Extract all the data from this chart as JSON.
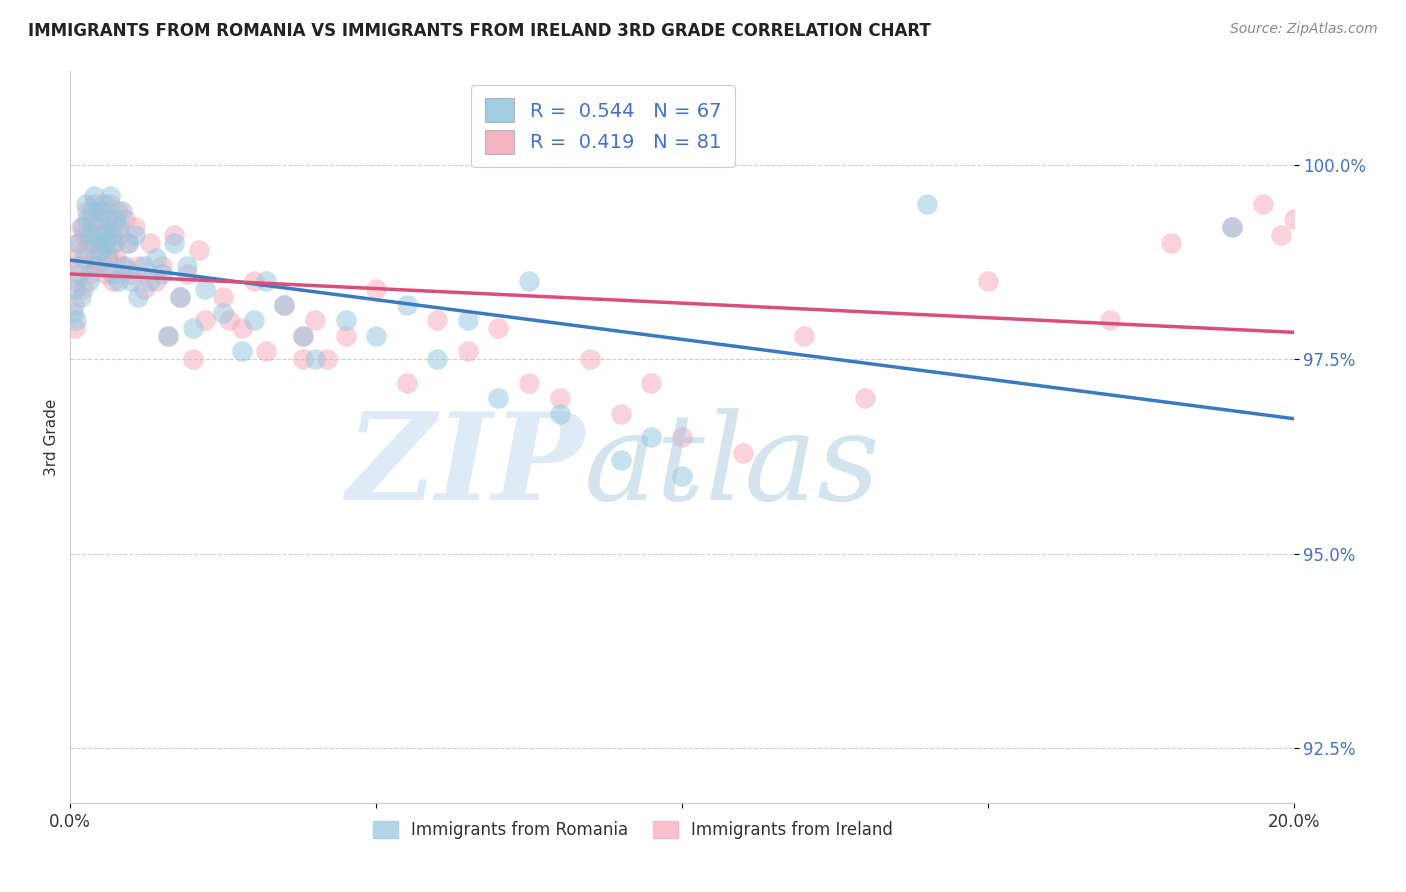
{
  "title": "IMMIGRANTS FROM ROMANIA VS IMMIGRANTS FROM IRELAND 3RD GRADE CORRELATION CHART",
  "source_text": "Source: ZipAtlas.com",
  "ylabel": "3rd Grade",
  "xlim": [
    0.0,
    20.0
  ],
  "ylim": [
    91.8,
    101.2
  ],
  "yticks": [
    92.5,
    95.0,
    97.5,
    100.0
  ],
  "xticks": [
    0.0,
    5.0,
    10.0,
    15.0,
    20.0
  ],
  "xtick_labels": [
    "0.0%",
    "",
    "",
    "",
    "20.0%"
  ],
  "ytick_labels": [
    "92.5%",
    "95.0%",
    "97.5%",
    "100.0%"
  ],
  "romania_color": "#92c5de",
  "ireland_color": "#f4a7b9",
  "romania_edge_color": "#5b9ec9",
  "ireland_edge_color": "#e06080",
  "romania_line_color": "#3a7bbf",
  "ireland_line_color": "#d94f7a",
  "romania_R": 0.544,
  "romania_N": 67,
  "ireland_R": 0.419,
  "ireland_N": 81,
  "romania_x": [
    0.05,
    0.08,
    0.1,
    0.12,
    0.15,
    0.18,
    0.2,
    0.22,
    0.25,
    0.28,
    0.3,
    0.32,
    0.35,
    0.38,
    0.4,
    0.42,
    0.45,
    0.48,
    0.5,
    0.52,
    0.55,
    0.58,
    0.6,
    0.62,
    0.65,
    0.68,
    0.7,
    0.72,
    0.75,
    0.78,
    0.8,
    0.85,
    0.9,
    0.95,
    1.0,
    1.05,
    1.1,
    1.2,
    1.3,
    1.4,
    1.5,
    1.6,
    1.7,
    1.8,
    1.9,
    2.0,
    2.2,
    2.5,
    2.8,
    3.0,
    3.2,
    3.5,
    3.8,
    4.0,
    4.5,
    5.0,
    5.5,
    6.0,
    6.5,
    7.0,
    7.5,
    8.0,
    9.0,
    9.5,
    10.0,
    14.0,
    19.0
  ],
  "romania_y": [
    98.1,
    98.4,
    98.0,
    99.0,
    98.6,
    98.3,
    99.2,
    98.8,
    99.5,
    99.3,
    98.5,
    99.1,
    99.4,
    99.6,
    99.0,
    98.7,
    99.2,
    98.9,
    99.4,
    99.1,
    99.5,
    99.0,
    98.8,
    99.3,
    99.6,
    99.1,
    98.6,
    99.0,
    99.3,
    98.5,
    99.2,
    99.4,
    98.7,
    99.0,
    98.5,
    99.1,
    98.3,
    98.7,
    98.5,
    98.8,
    98.6,
    97.8,
    99.0,
    98.3,
    98.7,
    97.9,
    98.4,
    98.1,
    97.6,
    98.0,
    98.5,
    98.2,
    97.8,
    97.5,
    98.0,
    97.8,
    98.2,
    97.5,
    98.0,
    97.0,
    98.5,
    96.8,
    96.2,
    96.5,
    96.0,
    99.5,
    99.2
  ],
  "ireland_x": [
    0.03,
    0.06,
    0.08,
    0.1,
    0.12,
    0.15,
    0.18,
    0.2,
    0.22,
    0.25,
    0.28,
    0.3,
    0.32,
    0.35,
    0.38,
    0.4,
    0.42,
    0.45,
    0.48,
    0.5,
    0.52,
    0.55,
    0.58,
    0.6,
    0.62,
    0.65,
    0.68,
    0.7,
    0.72,
    0.75,
    0.78,
    0.8,
    0.85,
    0.9,
    0.95,
    1.0,
    1.05,
    1.1,
    1.2,
    1.3,
    1.4,
    1.5,
    1.6,
    1.7,
    1.8,
    1.9,
    2.0,
    2.1,
    2.2,
    2.5,
    2.8,
    3.0,
    3.2,
    3.5,
    3.8,
    4.0,
    4.5,
    5.0,
    5.5,
    6.0,
    6.5,
    7.0,
    7.5,
    8.0,
    8.5,
    9.0,
    9.5,
    10.0,
    11.0,
    12.0,
    13.0,
    15.0,
    17.0,
    18.0,
    19.0,
    19.5,
    19.8,
    20.0,
    3.8,
    4.2,
    2.6
  ],
  "ireland_y": [
    98.8,
    98.2,
    97.9,
    98.5,
    99.0,
    98.7,
    99.2,
    98.4,
    99.1,
    98.9,
    99.4,
    99.0,
    98.6,
    99.3,
    98.8,
    99.5,
    99.1,
    98.7,
    99.3,
    98.9,
    99.4,
    99.0,
    98.6,
    99.2,
    98.8,
    99.5,
    99.0,
    98.5,
    99.2,
    98.8,
    99.4,
    99.1,
    98.7,
    99.3,
    99.0,
    98.6,
    99.2,
    98.7,
    98.4,
    99.0,
    98.5,
    98.7,
    97.8,
    99.1,
    98.3,
    98.6,
    97.5,
    98.9,
    98.0,
    98.3,
    97.9,
    98.5,
    97.6,
    98.2,
    97.5,
    98.0,
    97.8,
    98.4,
    97.2,
    98.0,
    97.6,
    97.9,
    97.2,
    97.0,
    97.5,
    96.8,
    97.2,
    96.5,
    96.3,
    97.8,
    97.0,
    98.5,
    98.0,
    99.0,
    99.2,
    99.5,
    99.1,
    99.3,
    97.8,
    97.5,
    98.0
  ]
}
